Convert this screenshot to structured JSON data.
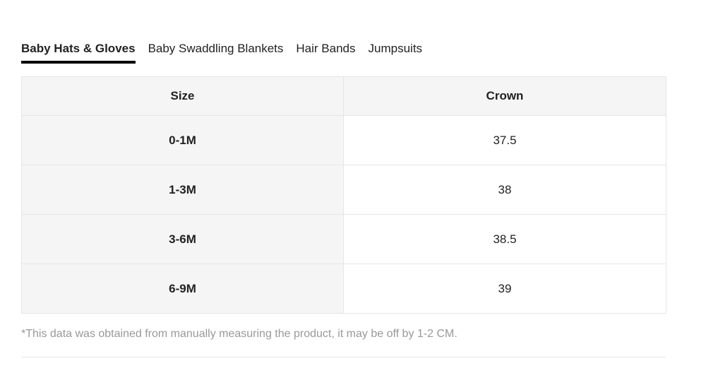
{
  "tabs": [
    {
      "label": "Baby Hats & Gloves",
      "active": true
    },
    {
      "label": "Baby Swaddling Blankets",
      "active": false
    },
    {
      "label": "Hair Bands",
      "active": false
    },
    {
      "label": "Jumpsuits",
      "active": false
    }
  ],
  "table": {
    "headers": {
      "size": "Size",
      "crown": "Crown"
    },
    "rows": [
      {
        "size": "0-1M",
        "crown": "37.5"
      },
      {
        "size": "1-3M",
        "crown": "38"
      },
      {
        "size": "3-6M",
        "crown": "38.5"
      },
      {
        "size": "6-9M",
        "crown": "39"
      }
    ]
  },
  "note": "*This data was obtained from manually measuring the product, it may be off by 1-2 CM.",
  "colors": {
    "active_underline": "#000000",
    "header_bg": "#f5f5f5",
    "border": "#e6e6e6",
    "note_text": "#999999"
  }
}
